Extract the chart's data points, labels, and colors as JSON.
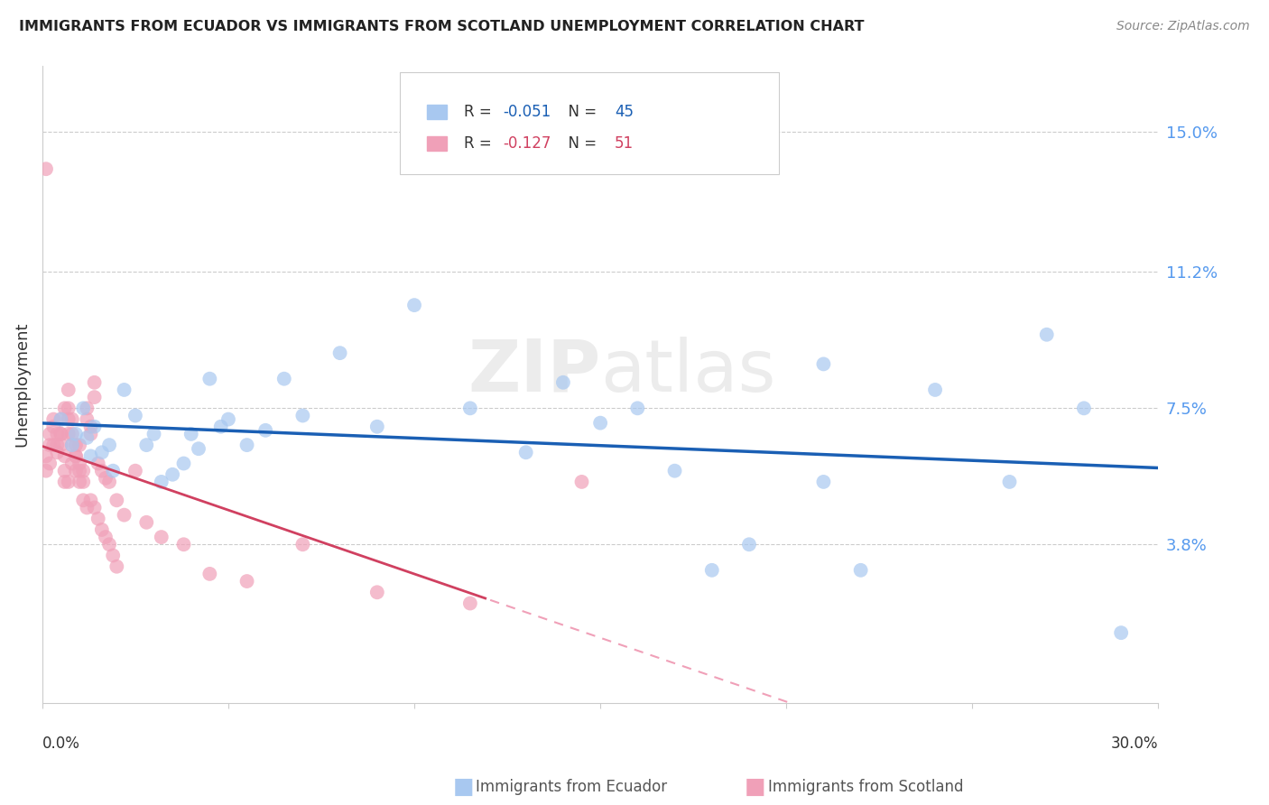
{
  "title": "IMMIGRANTS FROM ECUADOR VS IMMIGRANTS FROM SCOTLAND UNEMPLOYMENT CORRELATION CHART",
  "source": "Source: ZipAtlas.com",
  "ylabel": "Unemployment",
  "ytick_values": [
    0.15,
    0.112,
    0.075,
    0.038
  ],
  "ytick_labels": [
    "15.0%",
    "11.2%",
    "7.5%",
    "3.8%"
  ],
  "xlim": [
    0.0,
    0.3
  ],
  "ylim": [
    -0.005,
    0.168
  ],
  "watermark": "ZIPatlas",
  "legend_ecuador_R": "-0.051",
  "legend_ecuador_N": "45",
  "legend_scotland_R": "-0.127",
  "legend_scotland_N": "51",
  "ecuador_color": "#a8c8f0",
  "scotland_color": "#f0a0b8",
  "ecuador_line_color": "#1a5fb4",
  "scotland_line_color_solid": "#d04060",
  "scotland_line_color_dash": "#f0a0b8",
  "ecuador_points_x": [
    0.005,
    0.008,
    0.009,
    0.011,
    0.012,
    0.013,
    0.014,
    0.016,
    0.018,
    0.019,
    0.022,
    0.025,
    0.028,
    0.03,
    0.032,
    0.035,
    0.038,
    0.04,
    0.042,
    0.045,
    0.048,
    0.05,
    0.055,
    0.06,
    0.065,
    0.07,
    0.08,
    0.09,
    0.1,
    0.115,
    0.13,
    0.14,
    0.16,
    0.18,
    0.19,
    0.21,
    0.22,
    0.24,
    0.27,
    0.28,
    0.21,
    0.17,
    0.15,
    0.26,
    0.29
  ],
  "ecuador_points_y": [
    0.072,
    0.065,
    0.068,
    0.075,
    0.067,
    0.062,
    0.07,
    0.063,
    0.065,
    0.058,
    0.08,
    0.073,
    0.065,
    0.068,
    0.055,
    0.057,
    0.06,
    0.068,
    0.064,
    0.083,
    0.07,
    0.072,
    0.065,
    0.069,
    0.083,
    0.073,
    0.09,
    0.07,
    0.103,
    0.075,
    0.063,
    0.082,
    0.075,
    0.031,
    0.038,
    0.055,
    0.031,
    0.08,
    0.095,
    0.075,
    0.087,
    0.058,
    0.071,
    0.055,
    0.014
  ],
  "scotland_points_x": [
    0.001,
    0.001,
    0.002,
    0.002,
    0.003,
    0.003,
    0.004,
    0.004,
    0.005,
    0.005,
    0.005,
    0.006,
    0.006,
    0.006,
    0.007,
    0.007,
    0.007,
    0.007,
    0.008,
    0.008,
    0.008,
    0.009,
    0.009,
    0.009,
    0.01,
    0.01,
    0.01,
    0.011,
    0.011,
    0.012,
    0.012,
    0.013,
    0.013,
    0.014,
    0.014,
    0.015,
    0.016,
    0.017,
    0.018,
    0.02,
    0.022,
    0.025,
    0.028,
    0.032,
    0.038,
    0.045,
    0.055,
    0.07,
    0.09,
    0.115,
    0.145
  ],
  "scotland_points_y": [
    0.062,
    0.058,
    0.065,
    0.06,
    0.07,
    0.065,
    0.068,
    0.063,
    0.072,
    0.068,
    0.065,
    0.062,
    0.058,
    0.055,
    0.08,
    0.075,
    0.072,
    0.068,
    0.072,
    0.068,
    0.065,
    0.065,
    0.062,
    0.058,
    0.06,
    0.058,
    0.055,
    0.058,
    0.055,
    0.075,
    0.072,
    0.07,
    0.068,
    0.082,
    0.078,
    0.06,
    0.058,
    0.056,
    0.055,
    0.05,
    0.046,
    0.058,
    0.044,
    0.04,
    0.038,
    0.03,
    0.028,
    0.038,
    0.025,
    0.022,
    0.055
  ],
  "scotland_extra_x": [
    0.001,
    0.002,
    0.003,
    0.004,
    0.005,
    0.006,
    0.007,
    0.008,
    0.009,
    0.01,
    0.011,
    0.012,
    0.013,
    0.014,
    0.015,
    0.016,
    0.017,
    0.018,
    0.019,
    0.02
  ],
  "scotland_extra_y": [
    0.14,
    0.068,
    0.072,
    0.065,
    0.068,
    0.075,
    0.055,
    0.06,
    0.062,
    0.065,
    0.05,
    0.048,
    0.05,
    0.048,
    0.045,
    0.042,
    0.04,
    0.038,
    0.035,
    0.032
  ]
}
